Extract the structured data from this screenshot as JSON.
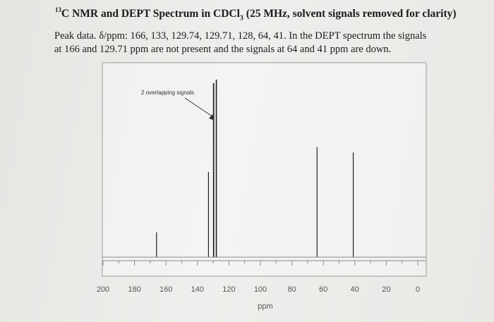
{
  "title": {
    "sup": "13",
    "text": "C NMR and DEPT Spectrum in CDCl",
    "sub": "3",
    "rest": " (25 MHz, solvent signals removed for clarity)"
  },
  "description": {
    "line1": "Peak data. δ/ppm: 166, 133, 129.74, 129.71, 128, 64, 41.  In the DEPT spectrum the signals",
    "line2": "at 166 and 129.71 ppm are not present and the signals at 64 and 41 ppm are down."
  },
  "chart_data": {
    "type": "bar",
    "title": "",
    "xlabel": "ppm",
    "ylabel": "",
    "xlim": [
      200,
      0
    ],
    "x_ticks": [
      200,
      180,
      160,
      140,
      120,
      100,
      80,
      60,
      40,
      20,
      0
    ],
    "tick_labels": [
      "200",
      "180",
      "160",
      "140",
      "120",
      "100",
      "80",
      "60",
      "40",
      "20",
      "0"
    ],
    "peaks": [
      {
        "ppm": 166,
        "height": 0.14
      },
      {
        "ppm": 133,
        "height": 0.48
      },
      {
        "ppm": 129.74,
        "height": 0.98
      },
      {
        "ppm": 129.71,
        "height": 0.98
      },
      {
        "ppm": 128,
        "height": 1.0
      },
      {
        "ppm": 64,
        "height": 0.62
      },
      {
        "ppm": 41,
        "height": 0.59
      }
    ],
    "annotation": "2 overlapping signals",
    "grid": false,
    "colors": {
      "peak": "#1f1f1f",
      "axis": "#8a8a8a",
      "text": "#555555"
    }
  }
}
